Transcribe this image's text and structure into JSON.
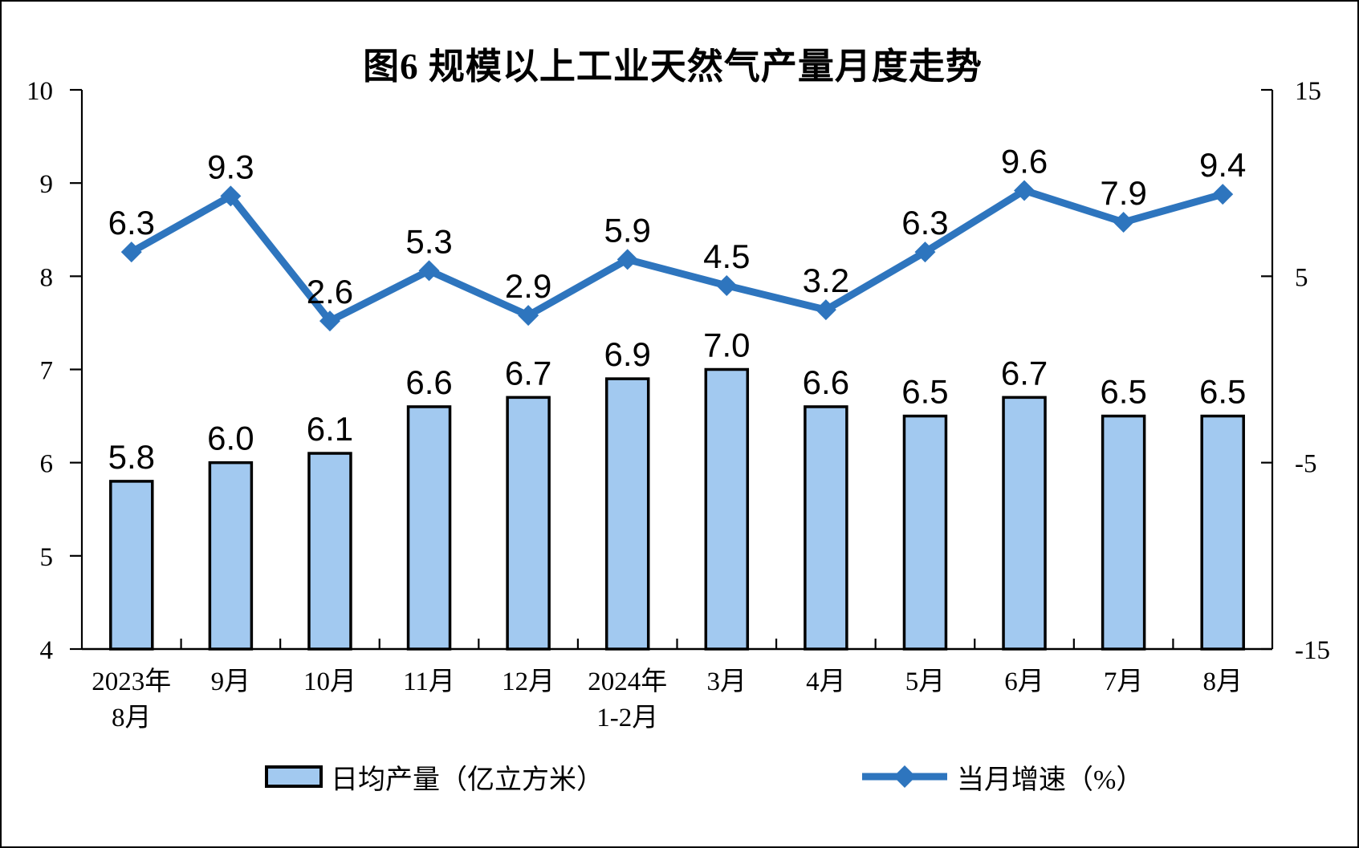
{
  "title": "图6 规模以上工业天然气产量月度走势",
  "legend": [
    {
      "label": "日均产量（亿立方米）",
      "swatch": "bar"
    },
    {
      "label": "当月增速（%）",
      "swatch": "line-diamond"
    }
  ],
  "colors": {
    "bar_fill": "#A2C9F0",
    "bar_border": "#000000",
    "line": "#2E75BE",
    "axis": "#000000",
    "text": "#000000",
    "background": "#FFFFFF"
  },
  "chart_data": {
    "type": "combo-bar-line",
    "categories": [
      [
        "2023年",
        "8月"
      ],
      [
        "9月"
      ],
      [
        "10月"
      ],
      [
        "11月"
      ],
      [
        "12月"
      ],
      [
        "2024年",
        "1-2月"
      ],
      [
        "3月"
      ],
      [
        "4月"
      ],
      [
        "5月"
      ],
      [
        "6月"
      ],
      [
        "7月"
      ],
      [
        "8月"
      ]
    ],
    "series": [
      {
        "name": "日均产量（亿立方米）",
        "type": "bar",
        "axis": "left",
        "values": [
          5.8,
          6.0,
          6.1,
          6.6,
          6.7,
          6.9,
          7.0,
          6.6,
          6.5,
          6.7,
          6.5,
          6.5
        ],
        "labels": [
          "5.8",
          "6.0",
          "6.1",
          "6.6",
          "6.7",
          "6.9",
          "7.0",
          "6.6",
          "6.5",
          "6.7",
          "6.5",
          "6.5"
        ]
      },
      {
        "name": "当月增速（%）",
        "type": "line",
        "axis": "right",
        "marker": "diamond",
        "values": [
          6.3,
          9.3,
          2.6,
          5.3,
          2.9,
          5.9,
          4.5,
          3.2,
          6.3,
          9.6,
          7.9,
          9.4
        ],
        "labels": [
          "6.3",
          "9.3",
          "2.6",
          "5.3",
          "2.9",
          "5.9",
          "4.5",
          "3.2",
          "6.3",
          "9.6",
          "7.9",
          "9.4"
        ]
      }
    ],
    "left_axis": {
      "min": 4,
      "max": 10,
      "tick_values": [
        4,
        5,
        6,
        7,
        8,
        9,
        10
      ],
      "tick_labels": [
        "4",
        "5",
        "6",
        "7",
        "8",
        "9",
        "10"
      ]
    },
    "right_axis": {
      "min": -15,
      "max": 15,
      "tick_values": [
        -15,
        -5,
        5,
        15
      ],
      "tick_labels": [
        "-15",
        "-5",
        "5",
        "15"
      ]
    },
    "grid": false,
    "legend_position": "bottom"
  }
}
